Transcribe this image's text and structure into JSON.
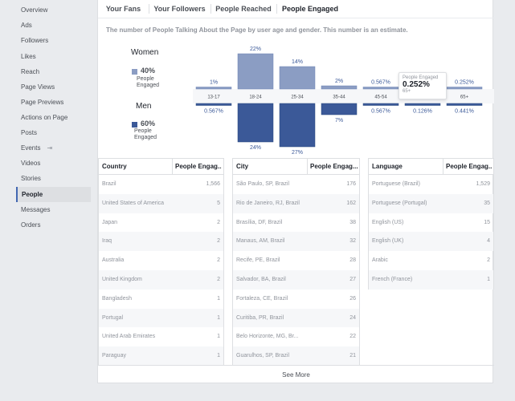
{
  "sidebar": {
    "items": [
      {
        "label": "Overview"
      },
      {
        "label": "Ads"
      },
      {
        "label": "Followers"
      },
      {
        "label": "Likes"
      },
      {
        "label": "Reach"
      },
      {
        "label": "Page Views"
      },
      {
        "label": "Page Previews"
      },
      {
        "label": "Actions on Page"
      },
      {
        "label": "Posts"
      },
      {
        "label": "Events",
        "icon": "external-link-icon"
      },
      {
        "label": "Videos"
      },
      {
        "label": "Stories"
      },
      {
        "label": "People",
        "active": true
      },
      {
        "label": "Messages"
      },
      {
        "label": "Orders"
      }
    ]
  },
  "tabs": [
    {
      "label": "Your Fans"
    },
    {
      "label": "Your Followers"
    },
    {
      "label": "People Reached"
    },
    {
      "label": "People Engaged",
      "active": true
    }
  ],
  "description": "The number of People Talking About the Page by user age and gender. This number is an estimate.",
  "legend": {
    "women": {
      "title": "Women",
      "pct": "40%",
      "sub": "People Engaged",
      "color": "#8b9dc3"
    },
    "men": {
      "title": "Men",
      "pct": "60%",
      "sub": "People Engaged",
      "color": "#3b5998"
    }
  },
  "chart_data": {
    "type": "bar",
    "categories": [
      "13-17",
      "18-24",
      "25-34",
      "35-44",
      "45-54",
      "55-64",
      "65+"
    ],
    "series": [
      {
        "name": "Women",
        "values": [
          1,
          22,
          14,
          2,
          0.567,
          0.126,
          0.252
        ],
        "labels": [
          "1%",
          "22%",
          "14%",
          "2%",
          "0.567%",
          "",
          "0.252%"
        ],
        "color": "#8b9dc3"
      },
      {
        "name": "Men",
        "values": [
          0.567,
          24,
          27,
          7,
          0.567,
          0.126,
          0.441
        ],
        "labels": [
          "0.567%",
          "24%",
          "27%",
          "7%",
          "0.567%",
          "0.126%",
          "0.441%"
        ],
        "color": "#3b5998"
      }
    ]
  },
  "tooltip": {
    "label": "People Engaged",
    "value": "0.252%",
    "age": "65+"
  },
  "tables": {
    "country": {
      "headers": [
        "Country",
        "People Engag..."
      ],
      "rows": [
        [
          "Brazil",
          "1,566"
        ],
        [
          "United States of America",
          "5"
        ],
        [
          "Japan",
          "2"
        ],
        [
          "Iraq",
          "2"
        ],
        [
          "Australia",
          "2"
        ],
        [
          "United Kingdom",
          "2"
        ],
        [
          "Bangladesh",
          "1"
        ],
        [
          "Portugal",
          "1"
        ],
        [
          "United Arab Emirates",
          "1"
        ],
        [
          "Paraguay",
          "1"
        ]
      ]
    },
    "city": {
      "headers": [
        "City",
        "People Engag..."
      ],
      "rows": [
        [
          "São Paulo, SP, Brazil",
          "176"
        ],
        [
          "Rio de Janeiro, RJ, Brazil",
          "162"
        ],
        [
          "Brasília, DF, Brazil",
          "38"
        ],
        [
          "Manaus, AM, Brazil",
          "32"
        ],
        [
          "Recife, PE, Brazil",
          "28"
        ],
        [
          "Salvador, BA, Brazil",
          "27"
        ],
        [
          "Fortaleza, CE, Brazil",
          "26"
        ],
        [
          "Curitiba, PR, Brazil",
          "24"
        ],
        [
          "Belo Horizonte, MG, Br...",
          "22"
        ],
        [
          "Guarulhos, SP, Brazil",
          "21"
        ]
      ]
    },
    "language": {
      "headers": [
        "Language",
        "People Engag..."
      ],
      "rows": [
        [
          "Portuguese (Brazil)",
          "1,529"
        ],
        [
          "Portuguese (Portugal)",
          "35"
        ],
        [
          "English (US)",
          "15"
        ],
        [
          "English (UK)",
          "4"
        ],
        [
          "Arabic",
          "2"
        ],
        [
          "French (France)",
          "1"
        ]
      ]
    }
  },
  "see_more": "See More"
}
